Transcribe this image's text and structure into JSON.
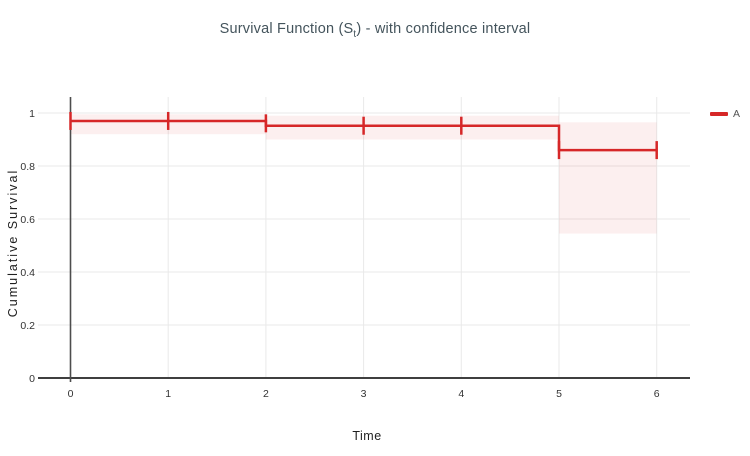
{
  "header": {
    "title_pre": "Survival Function (S",
    "title_sub": "t",
    "title_post": ") - with confidence interval"
  },
  "colors": {
    "series_red": "#d62728",
    "ci_band": "#d62728",
    "axis_dark": "#3f3f3f",
    "zero_line": "#4d4d4d",
    "gridline": "#e9e9e9",
    "tick_text": "#333333"
  },
  "chart_data": {
    "type": "line",
    "subtype": "kaplan-meier-step",
    "title": "Survival Function (St) - with confidence interval",
    "xlabel": "Time",
    "ylabel": "Cumulative Survival",
    "grid": true,
    "legend_position": "right",
    "x_range": [
      -0.33,
      6.34
    ],
    "y_range": [
      0,
      1.06
    ],
    "x_ticks": [
      0,
      1,
      2,
      3,
      4,
      5,
      6
    ],
    "x_tick_labels": [
      "0",
      "1",
      "2",
      "3",
      "4",
      "5",
      "6"
    ],
    "y_ticks": [
      0,
      0.2,
      0.4,
      0.6,
      0.8,
      1
    ],
    "y_tick_labels": [
      "0",
      "0.2",
      "0.4",
      "0.6",
      "0.8",
      "1"
    ],
    "legend": [
      {
        "label": "A",
        "color": "#d62728"
      }
    ],
    "series": [
      {
        "name": "A",
        "color": "#d62728",
        "steps": [
          {
            "t0": 0,
            "t1": 2,
            "s": 0.97,
            "ci": [
              0.92,
              0.995
            ]
          },
          {
            "t0": 2,
            "t1": 5,
            "s": 0.952,
            "ci": [
              0.9,
              0.99
            ]
          },
          {
            "t0": 5,
            "t1": 6,
            "s": 0.86,
            "ci": [
              0.545,
              0.965
            ]
          }
        ],
        "censor_marks": [
          {
            "t": 0,
            "s": 0.97
          },
          {
            "t": 1,
            "s": 0.97
          },
          {
            "t": 2,
            "s": 0.961
          },
          {
            "t": 3,
            "s": 0.952
          },
          {
            "t": 4,
            "s": 0.952
          },
          {
            "t": 5,
            "s": 0.86
          },
          {
            "t": 6,
            "s": 0.86
          }
        ]
      }
    ]
  }
}
